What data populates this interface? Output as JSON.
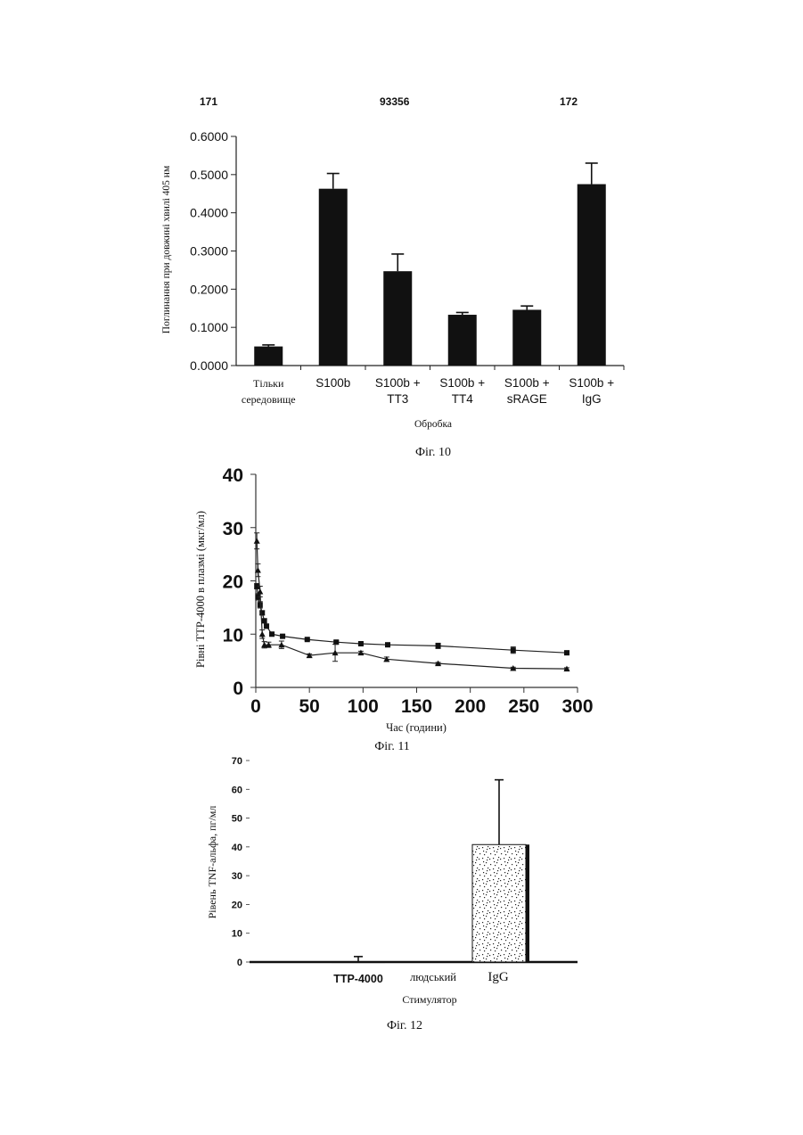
{
  "header": {
    "left_page": "171",
    "patent_number": "93356",
    "right_page": "172"
  },
  "figures": [
    {
      "caption": "Фіг. 10"
    },
    {
      "caption": "Фіг. 11"
    },
    {
      "caption": "Фіг. 12"
    }
  ],
  "chart_data": [
    {
      "type": "bar",
      "ylabel": "Поглинання при довжині хвилі 405 нм",
      "xlabel": "Обробка",
      "ylim": [
        0,
        0.6
      ],
      "yticks": [
        "0.0000",
        "0.1000",
        "0.2000",
        "0.3000",
        "0.4000",
        "0.5000",
        "0.6000"
      ],
      "categories": [
        [
          "Тільки",
          "середовище"
        ],
        [
          "S100b"
        ],
        [
          "S100b +",
          "TT3"
        ],
        [
          "S100b +",
          "TT4"
        ],
        [
          "S100b +",
          "sRAGE"
        ],
        [
          "S100b +",
          "IgG"
        ]
      ],
      "values": [
        0.05,
        0.463,
        0.247,
        0.133,
        0.146,
        0.475
      ],
      "errors": [
        0.004,
        0.04,
        0.045,
        0.006,
        0.01,
        0.055
      ],
      "bar_color": "#111111"
    },
    {
      "type": "line",
      "ylabel": "Рівні ТТР-4000 в плазмі (мкг/мл)",
      "xlabel": "Час (години)",
      "xlim": [
        0,
        300
      ],
      "ylim": [
        0,
        40
      ],
      "xticks": [
        "0",
        "50",
        "100",
        "150",
        "200",
        "250",
        "300"
      ],
      "yticks": [
        "0",
        "10",
        "20",
        "30",
        "40"
      ],
      "series": [
        {
          "marker": "square",
          "points": [
            [
              1,
              19
            ],
            [
              2,
              17
            ],
            [
              4,
              15.5
            ],
            [
              6,
              14
            ],
            [
              8,
              12.5
            ],
            [
              10,
              11.5
            ],
            [
              15,
              10
            ],
            [
              25,
              9.6
            ],
            [
              48,
              9
            ],
            [
              75,
              8.5
            ],
            [
              98,
              8.2
            ],
            [
              123,
              8
            ],
            [
              170,
              7.8
            ],
            [
              240,
              7
            ],
            [
              290,
              6.5
            ]
          ],
          "errors": [
            0.5,
            0.6,
            0.6,
            0.4,
            0.4,
            0.4,
            0.3,
            0.3,
            0.2,
            0.3,
            0.3,
            0.3,
            0.5,
            0.6,
            0.3
          ]
        },
        {
          "marker": "triangle",
          "points": [
            [
              1,
              27.5
            ],
            [
              2,
              22
            ],
            [
              4,
              18
            ],
            [
              6,
              10
            ],
            [
              8,
              8
            ],
            [
              12,
              8
            ],
            [
              24,
              8
            ],
            [
              50,
              6
            ],
            [
              74,
              6.5
            ],
            [
              98,
              6.5
            ],
            [
              122,
              5.3
            ],
            [
              170,
              4.5
            ],
            [
              240,
              3.6
            ],
            [
              290,
              3.5
            ]
          ],
          "errors": [
            1.5,
            1.2,
            1,
            0.8,
            0.6,
            0.5,
            0.7,
            0.3,
            1.6,
            0.3,
            0.4,
            0.2,
            0.2,
            0.2
          ]
        }
      ]
    },
    {
      "type": "bar",
      "ylabel": "Рівень TNF-альфа, пг/мл",
      "xlabel": "Стимулятор",
      "ylim": [
        0,
        70
      ],
      "yticks": [
        "0",
        "10",
        "20",
        "30",
        "40",
        "50",
        "60",
        "70"
      ],
      "categories": [
        "TTP-4000",
        "людський",
        "IgG"
      ],
      "values": [
        0.3,
        0,
        40.8
      ],
      "errors": [
        1.6,
        0,
        22.5
      ]
    }
  ]
}
